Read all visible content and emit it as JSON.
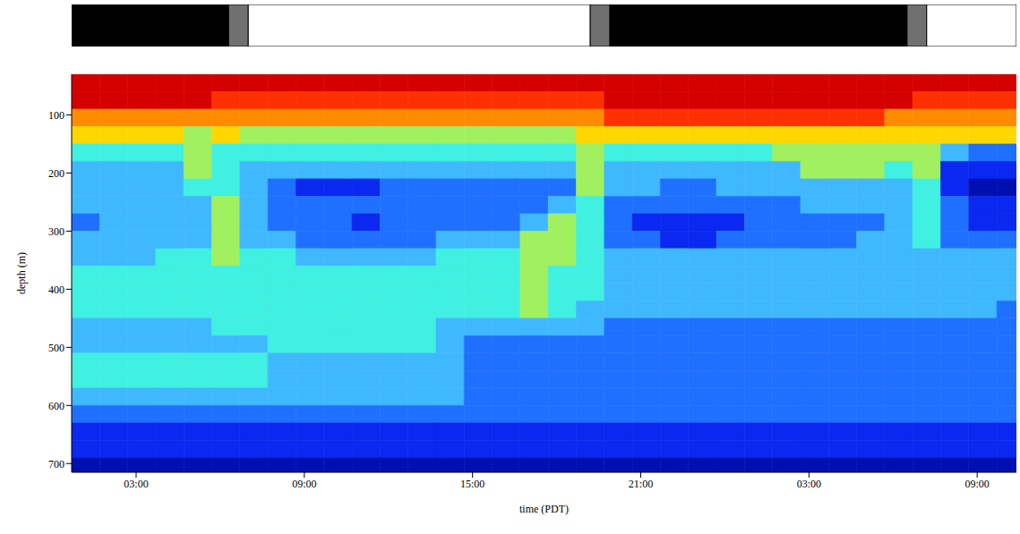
{
  "chart_data": {
    "type": "heatmap",
    "x_label": "time (PDT)",
    "y_label": "depth (m)",
    "xlim": [
      0.7,
      34.4
    ],
    "xticks": [
      {
        "value": 3,
        "label": "03:00"
      },
      {
        "value": 9,
        "label": "09:00"
      },
      {
        "value": 15,
        "label": "15:00"
      },
      {
        "value": 21,
        "label": "21:00"
      },
      {
        "value": 27,
        "label": "03:00"
      },
      {
        "value": 33,
        "label": "09:00"
      }
    ],
    "ylim": [
      30,
      715
    ],
    "yticks": [
      100,
      200,
      300,
      400,
      500,
      600,
      700
    ],
    "light_periods": [
      {
        "start": 0.7,
        "end": 6.3,
        "color": "#000000"
      },
      {
        "start": 6.3,
        "end": 7.0,
        "color": "#707070"
      },
      {
        "start": 7.0,
        "end": 19.2,
        "color": "#ffffff"
      },
      {
        "start": 19.2,
        "end": 19.9,
        "color": "#707070"
      },
      {
        "start": 19.9,
        "end": 30.5,
        "color": "#000000"
      },
      {
        "start": 30.5,
        "end": 31.2,
        "color": "#707070"
      },
      {
        "start": 31.2,
        "end": 34.4,
        "color": "#ffffff"
      }
    ],
    "level_colors": [
      "#d40000",
      "#ff3000",
      "#ff8c00",
      "#ffd700",
      "#a0f060",
      "#40f0e0",
      "#40b8ff",
      "#2070ff",
      "#0a28f0",
      "#0010b0"
    ],
    "x_edges": [
      0.7,
      1.7,
      2.7,
      3.7,
      4.7,
      5.7,
      6.7,
      7.7,
      8.7,
      9.7,
      10.7,
      11.7,
      12.7,
      13.7,
      14.7,
      15.7,
      16.7,
      17.7,
      18.7,
      19.7,
      20.7,
      21.7,
      22.7,
      23.7,
      24.7,
      25.7,
      26.7,
      27.7,
      28.7,
      29.7,
      30.7,
      31.7,
      32.7,
      33.7,
      34.7
    ],
    "y_edges": [
      30,
      60,
      90,
      120,
      150,
      180,
      210,
      240,
      270,
      300,
      330,
      360,
      390,
      420,
      450,
      480,
      510,
      540,
      570,
      600,
      630,
      660,
      690,
      720
    ],
    "cells": [
      [
        0,
        0,
        2,
        3,
        5,
        6,
        6,
        6,
        7,
        6,
        6,
        5,
        5,
        5,
        6,
        6,
        5,
        5,
        6,
        7,
        8,
        8,
        9
      ],
      [
        0,
        0,
        2,
        3,
        5,
        6,
        6,
        6,
        6,
        6,
        6,
        5,
        5,
        5,
        6,
        6,
        5,
        5,
        6,
        7,
        8,
        8,
        9
      ],
      [
        0,
        0,
        2,
        3,
        5,
        6,
        6,
        6,
        6,
        6,
        6,
        5,
        5,
        5,
        6,
        6,
        5,
        5,
        6,
        7,
        8,
        8,
        9
      ],
      [
        0,
        0,
        2,
        3,
        5,
        6,
        6,
        6,
        6,
        6,
        5,
        5,
        5,
        5,
        6,
        6,
        5,
        5,
        6,
        7,
        8,
        8,
        9
      ],
      [
        0,
        0,
        2,
        4,
        4,
        4,
        5,
        6,
        6,
        6,
        5,
        5,
        5,
        5,
        6,
        6,
        5,
        5,
        6,
        7,
        8,
        8,
        9
      ],
      [
        0,
        1,
        2,
        3,
        5,
        5,
        5,
        4,
        4,
        4,
        4,
        5,
        5,
        5,
        5,
        6,
        5,
        5,
        6,
        7,
        8,
        8,
        9
      ],
      [
        0,
        1,
        2,
        4,
        5,
        6,
        6,
        6,
        6,
        6,
        5,
        5,
        5,
        5,
        5,
        6,
        5,
        5,
        6,
        7,
        8,
        8,
        9
      ],
      [
        0,
        1,
        2,
        4,
        5,
        6,
        7,
        7,
        7,
        6,
        5,
        5,
        5,
        5,
        5,
        5,
        6,
        6,
        6,
        7,
        8,
        8,
        9
      ],
      [
        0,
        1,
        2,
        4,
        5,
        6,
        8,
        7,
        7,
        7,
        6,
        5,
        5,
        5,
        5,
        5,
        6,
        6,
        6,
        7,
        8,
        8,
        9
      ],
      [
        0,
        1,
        2,
        4,
        5,
        6,
        8,
        7,
        7,
        7,
        6,
        5,
        5,
        5,
        5,
        5,
        6,
        6,
        6,
        7,
        8,
        8,
        9
      ],
      [
        0,
        1,
        2,
        4,
        5,
        6,
        8,
        7,
        8,
        7,
        6,
        5,
        5,
        5,
        5,
        5,
        6,
        6,
        6,
        7,
        8,
        8,
        9
      ],
      [
        0,
        1,
        2,
        4,
        5,
        6,
        7,
        7,
        7,
        7,
        6,
        5,
        5,
        5,
        5,
        5,
        6,
        6,
        6,
        7,
        8,
        8,
        9
      ],
      [
        0,
        1,
        2,
        4,
        5,
        6,
        7,
        7,
        7,
        7,
        6,
        5,
        5,
        5,
        5,
        5,
        6,
        6,
        6,
        7,
        8,
        8,
        9
      ],
      [
        0,
        1,
        2,
        4,
        5,
        6,
        7,
        7,
        7,
        6,
        5,
        5,
        5,
        5,
        6,
        6,
        6,
        6,
        6,
        7,
        8,
        8,
        9
      ],
      [
        0,
        1,
        2,
        4,
        5,
        6,
        7,
        7,
        7,
        6,
        5,
        5,
        5,
        5,
        6,
        7,
        7,
        7,
        7,
        7,
        8,
        8,
        9
      ],
      [
        0,
        1,
        2,
        4,
        5,
        6,
        7,
        7,
        7,
        6,
        5,
        5,
        5,
        5,
        6,
        7,
        7,
        7,
        7,
        7,
        8,
        8,
        9
      ],
      [
        0,
        1,
        2,
        4,
        5,
        6,
        7,
        7,
        6,
        4,
        4,
        4,
        4,
        4,
        6,
        7,
        7,
        7,
        7,
        7,
        8,
        8,
        9
      ],
      [
        0,
        1,
        2,
        4,
        5,
        6,
        7,
        6,
        4,
        4,
        4,
        5,
        5,
        5,
        6,
        7,
        7,
        7,
        7,
        7,
        8,
        8,
        9
      ],
      [
        0,
        1,
        2,
        3,
        4,
        4,
        4,
        5,
        5,
        5,
        5,
        5,
        5,
        6,
        6,
        7,
        7,
        7,
        7,
        7,
        8,
        8,
        9
      ],
      [
        0,
        0,
        1,
        3,
        5,
        6,
        6,
        7,
        7,
        7,
        6,
        6,
        6,
        6,
        7,
        7,
        7,
        7,
        7,
        7,
        8,
        8,
        9
      ],
      [
        0,
        0,
        1,
        3,
        5,
        6,
        6,
        7,
        8,
        7,
        6,
        6,
        6,
        6,
        7,
        7,
        7,
        7,
        7,
        7,
        8,
        8,
        9
      ],
      [
        0,
        0,
        1,
        3,
        5,
        6,
        7,
        7,
        8,
        8,
        6,
        6,
        6,
        6,
        7,
        7,
        7,
        7,
        7,
        7,
        8,
        8,
        9
      ],
      [
        0,
        0,
        1,
        3,
        5,
        6,
        7,
        7,
        8,
        8,
        6,
        6,
        6,
        6,
        7,
        7,
        7,
        7,
        7,
        7,
        8,
        8,
        9
      ],
      [
        0,
        0,
        1,
        3,
        5,
        6,
        6,
        7,
        8,
        7,
        6,
        6,
        6,
        6,
        7,
        7,
        7,
        7,
        7,
        7,
        8,
        8,
        9
      ],
      [
        0,
        0,
        1,
        3,
        5,
        6,
        6,
        7,
        7,
        7,
        6,
        6,
        6,
        6,
        7,
        7,
        7,
        7,
        7,
        7,
        8,
        8,
        9
      ],
      [
        0,
        0,
        1,
        3,
        4,
        6,
        6,
        7,
        7,
        7,
        6,
        6,
        6,
        6,
        7,
        7,
        7,
        7,
        7,
        7,
        8,
        8,
        9
      ],
      [
        0,
        0,
        1,
        3,
        4,
        4,
        6,
        6,
        7,
        7,
        6,
        6,
        6,
        6,
        7,
        7,
        7,
        7,
        7,
        7,
        8,
        8,
        9
      ],
      [
        0,
        0,
        1,
        3,
        4,
        4,
        6,
        6,
        7,
        7,
        6,
        6,
        6,
        6,
        7,
        7,
        7,
        7,
        7,
        7,
        8,
        8,
        9
      ],
      [
        0,
        0,
        1,
        3,
        4,
        4,
        6,
        6,
        7,
        6,
        6,
        6,
        6,
        6,
        7,
        7,
        7,
        7,
        7,
        7,
        8,
        8,
        9
      ],
      [
        0,
        0,
        2,
        3,
        4,
        5,
        6,
        6,
        6,
        6,
        6,
        6,
        6,
        6,
        7,
        7,
        7,
        7,
        7,
        7,
        8,
        8,
        9
      ],
      [
        0,
        1,
        2,
        3,
        4,
        4,
        5,
        5,
        5,
        5,
        6,
        6,
        6,
        6,
        7,
        7,
        7,
        7,
        7,
        7,
        8,
        8,
        9
      ],
      [
        0,
        1,
        2,
        3,
        6,
        8,
        8,
        7,
        7,
        7,
        6,
        6,
        6,
        6,
        7,
        7,
        7,
        7,
        7,
        7,
        8,
        8,
        9
      ],
      [
        0,
        1,
        2,
        3,
        7,
        8,
        9,
        8,
        8,
        7,
        6,
        6,
        6,
        6,
        7,
        7,
        7,
        7,
        7,
        7,
        8,
        8,
        9
      ],
      [
        0,
        1,
        2,
        3,
        7,
        8,
        9,
        8,
        8,
        7,
        6,
        6,
        6,
        7,
        7,
        7,
        7,
        7,
        7,
        7,
        8,
        8,
        9
      ]
    ]
  }
}
